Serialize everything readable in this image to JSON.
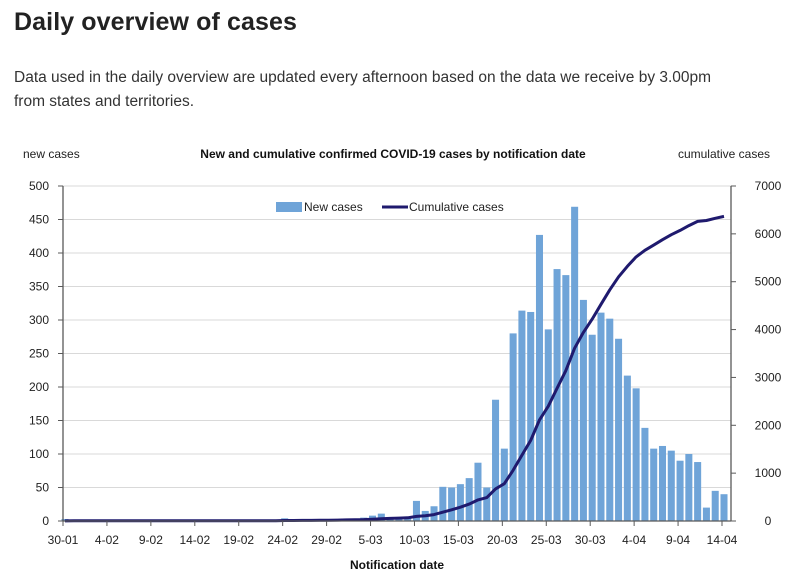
{
  "page": {
    "title": "Daily overview of cases",
    "intro": "Data used in the daily overview are updated every afternoon based on the data we receive by 3.00pm from states and territories."
  },
  "chart_data": {
    "type": "bar",
    "title": "New and cumulative confirmed COVID-19 cases by notification date",
    "xlabel": "Notification date",
    "ylabel_left": "new cases",
    "ylabel_right": "cumulative cases",
    "ylim_left": [
      0,
      500
    ],
    "ylim_right": [
      0,
      7000
    ],
    "yticks_left": [
      0,
      50,
      100,
      150,
      200,
      250,
      300,
      350,
      400,
      450,
      500
    ],
    "yticks_right": [
      0,
      1000,
      2000,
      3000,
      4000,
      5000,
      6000,
      7000
    ],
    "xtick_labels": [
      "30-01",
      "4-02",
      "9-02",
      "14-02",
      "19-02",
      "24-02",
      "29-02",
      "5-03",
      "10-03",
      "15-03",
      "20-03",
      "25-03",
      "30-03",
      "4-04",
      "9-04",
      "14-04"
    ],
    "xtick_every_n_days": 5,
    "grid": true,
    "legend": {
      "position": "top-center",
      "entries": [
        "New cases",
        "Cumulative cases"
      ]
    },
    "colors": {
      "bars": "#6fa4d8",
      "line": "#1f1a6e",
      "grid": "#d9d9d9",
      "axis": "#595959"
    },
    "categories": [
      "30-01",
      "31-01",
      "1-02",
      "2-02",
      "3-02",
      "4-02",
      "5-02",
      "6-02",
      "7-02",
      "8-02",
      "9-02",
      "10-02",
      "11-02",
      "12-02",
      "13-02",
      "14-02",
      "15-02",
      "16-02",
      "17-02",
      "18-02",
      "19-02",
      "20-02",
      "21-02",
      "22-02",
      "23-02",
      "24-02",
      "25-02",
      "26-02",
      "27-02",
      "28-02",
      "29-02",
      "1-03",
      "2-03",
      "3-03",
      "4-03",
      "5-03",
      "6-03",
      "7-03",
      "8-03",
      "9-03",
      "10-03",
      "11-03",
      "12-03",
      "13-03",
      "14-03",
      "15-03",
      "16-03",
      "17-03",
      "18-03",
      "19-03",
      "20-03",
      "21-03",
      "22-03",
      "23-03",
      "24-03",
      "25-03",
      "26-03",
      "27-03",
      "28-03",
      "29-03",
      "30-03",
      "31-03",
      "1-04",
      "2-04",
      "3-04",
      "4-04",
      "5-04",
      "6-04",
      "7-04",
      "8-04",
      "9-04",
      "10-04",
      "11-04",
      "12-04",
      "13-04",
      "14-04"
    ],
    "series": [
      {
        "name": "New cases",
        "type": "bar",
        "axis": "left",
        "values": [
          3,
          1,
          1,
          1,
          0,
          0,
          0,
          0,
          0,
          0,
          0,
          0,
          0,
          0,
          0,
          0,
          0,
          0,
          0,
          0,
          0,
          0,
          0,
          0,
          0,
          4,
          1,
          1,
          1,
          2,
          2,
          2,
          3,
          3,
          5,
          8,
          11,
          6,
          5,
          6,
          30,
          15,
          22,
          51,
          50,
          55,
          64,
          87,
          50,
          181,
          108,
          280,
          314,
          312,
          427,
          286,
          376,
          367,
          469,
          330,
          278,
          311,
          302,
          272,
          217,
          198,
          139,
          108,
          112,
          105,
          90,
          100,
          88,
          20,
          45,
          40
        ]
      },
      {
        "name": "Cumulative cases",
        "type": "line",
        "axis": "right",
        "values": [
          3,
          4,
          5,
          6,
          6,
          6,
          6,
          6,
          6,
          6,
          6,
          6,
          6,
          6,
          6,
          6,
          6,
          6,
          6,
          6,
          6,
          6,
          6,
          6,
          6,
          10,
          11,
          12,
          13,
          15,
          17,
          19,
          22,
          25,
          30,
          38,
          49,
          55,
          60,
          66,
          96,
          111,
          133,
          184,
          234,
          289,
          353,
          440,
          490,
          671,
          779,
          1059,
          1373,
          1685,
          2112,
          2398,
          2774,
          3141,
          3610,
          3940,
          4218,
          4529,
          4831,
          5103,
          5320,
          5518,
          5657,
          5765,
          5877,
          5982,
          6072,
          6172,
          6260,
          6280,
          6325,
          6365
        ]
      }
    ]
  }
}
